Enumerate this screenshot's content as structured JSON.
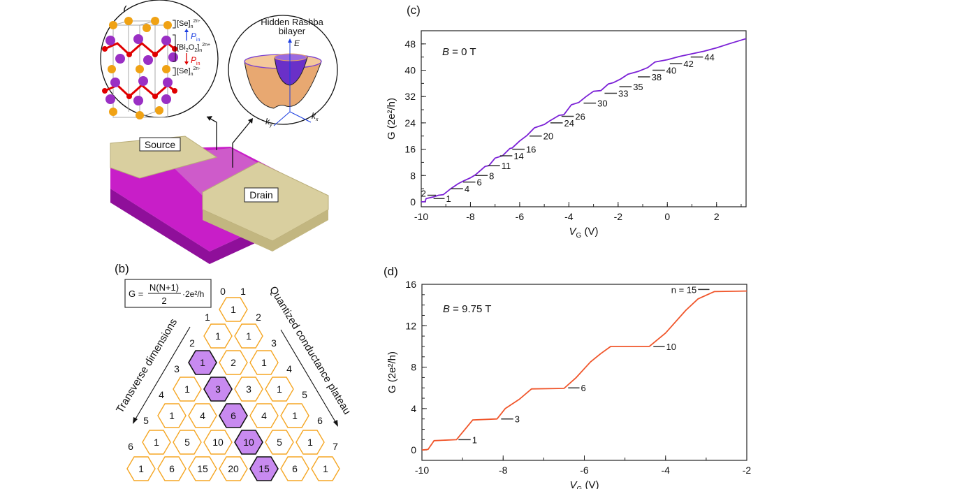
{
  "panel_labels": {
    "a": "(a)",
    "b": "(b)",
    "c": "(c)",
    "d": "(d)"
  },
  "panel_a": {
    "crystal": {
      "se_top": "[Se]",
      "se_top_sub": "n",
      "se_top_sup": "2n-",
      "bio": "[Bi",
      "bio_sub1": "2",
      "bio_mid": "O",
      "bio_sub2": "2",
      "bio_end": "]",
      "bio_sub3": "n",
      "bio_sup": "2n+",
      "se_bot": "[Se]",
      "se_bot_sub": "n",
      "se_bot_sup": "2n-",
      "p_up": "P",
      "p_up_sub": "in",
      "p_down": "P",
      "p_down_sub": "in"
    },
    "band": {
      "title_line1": "Hidden Rashba",
      "title_line2": "bilayer",
      "axis_e": "E",
      "axis_kx": "k",
      "axis_kx_sub": "x",
      "axis_ky": "k",
      "axis_ky_sub": "y"
    },
    "device": {
      "source_label": "Source",
      "drain_label": "Drain"
    },
    "colors": {
      "se": "#f0a214",
      "bi": "#9a2fc4",
      "o": "#e00000",
      "substrate": "#c81ec8",
      "contact": "#d9cf9f"
    }
  },
  "panel_b": {
    "formula": {
      "lhs": "G =",
      "numerator": "N(N+1)",
      "denominator": "2",
      "rhs": "·2e²/h"
    },
    "left_axis_label": "Transverse dimensions",
    "right_axis_label": "Quantized conductance plateau",
    "left_indices": [
      "0",
      "1",
      "2",
      "3",
      "4",
      "5",
      "6"
    ],
    "right_indices": [
      "1",
      "2",
      "3",
      "4",
      "5",
      "6",
      "7"
    ],
    "rows": [
      [
        "1"
      ],
      [
        "1",
        "1"
      ],
      [
        "1",
        "2",
        "1"
      ],
      [
        "1",
        "3",
        "3",
        "1"
      ],
      [
        "1",
        "4",
        "6",
        "4",
        "1"
      ],
      [
        "1",
        "5",
        "10",
        "10",
        "5",
        "1"
      ],
      [
        "1",
        "6",
        "15",
        "20",
        "15",
        "6",
        "1"
      ]
    ],
    "highlighted": [
      [
        2,
        0
      ],
      [
        3,
        1
      ],
      [
        4,
        2
      ],
      [
        5,
        3
      ],
      [
        6,
        4
      ]
    ],
    "colors": {
      "hex_border": "#f5a623",
      "highlight_fill": "#c88af0"
    }
  },
  "chart_data": [
    {
      "id": "c",
      "type": "line",
      "annotation_var": "B",
      "annotation_rest": " = 0 T",
      "xlabel_var": "V",
      "xlabel_sub": "G",
      "xlabel_unit": " (V)",
      "ylabel": "G (2e²/h)",
      "xlim": [
        -10,
        3.2
      ],
      "ylim": [
        -1.5,
        52
      ],
      "xticks": [
        -10,
        -8,
        -6,
        -4,
        -2,
        0,
        2
      ],
      "xminor": 1,
      "yticks": [
        0,
        8,
        16,
        24,
        32,
        40,
        48
      ],
      "yminor": 4,
      "color": "#7a1fd6",
      "x": [
        -10,
        -9.85,
        -9.8,
        -9.5,
        -9.3,
        -9.1,
        -8.8,
        -8.5,
        -8.3,
        -8.0,
        -7.8,
        -7.4,
        -7.25,
        -7.0,
        -6.7,
        -6.4,
        -6.3,
        -6.0,
        -5.7,
        -5.4,
        -5.0,
        -4.8,
        -4.4,
        -4.2,
        -3.9,
        -3.6,
        -3.3,
        -3.0,
        -2.7,
        -2.4,
        -2.2,
        -1.9,
        -1.6,
        -1.2,
        -0.8,
        -0.5,
        0,
        0.5,
        1.0,
        1.5,
        2.0,
        2.5,
        3.2
      ],
      "y": [
        0,
        0,
        1,
        1.5,
        2,
        2.2,
        4,
        5.5,
        6.3,
        7.3,
        8.2,
        10.8,
        11,
        13.3,
        14,
        16.2,
        16.4,
        18.5,
        20.2,
        22.5,
        23.5,
        24.5,
        26.3,
        26.5,
        29.5,
        30.2,
        32,
        33.6,
        33.8,
        35.8,
        36.2,
        37.3,
        38.8,
        39.6,
        40.8,
        42.5,
        43.2,
        44.2,
        45,
        45.8,
        46.8,
        48,
        49.6
      ],
      "plateaus": [
        {
          "label": "1",
          "y": 1,
          "x_start": -9.5,
          "x_end": -9.05,
          "side": "right"
        },
        {
          "label": "2",
          "y": 2,
          "x_start": -9.75,
          "x_end": -9.4,
          "side": "left"
        },
        {
          "label": "4",
          "y": 4,
          "x_start": -8.8,
          "x_end": -8.3,
          "side": "right"
        },
        {
          "label": "6",
          "y": 6,
          "x_start": -8.3,
          "x_end": -7.8,
          "side": "right"
        },
        {
          "label": "8",
          "y": 8,
          "x_start": -7.8,
          "x_end": -7.3,
          "side": "right"
        },
        {
          "label": "11",
          "y": 11,
          "x_start": -7.3,
          "x_end": -6.8,
          "side": "right"
        },
        {
          "label": "14",
          "y": 14,
          "x_start": -6.8,
          "x_end": -6.3,
          "side": "right"
        },
        {
          "label": "16",
          "y": 16,
          "x_start": -6.3,
          "x_end": -5.8,
          "side": "right"
        },
        {
          "label": "20",
          "y": 20,
          "x_start": -5.6,
          "x_end": -5.1,
          "side": "right"
        },
        {
          "label": "24",
          "y": 24,
          "x_start": -4.75,
          "x_end": -4.25,
          "side": "right"
        },
        {
          "label": "26",
          "y": 26,
          "x_start": -4.3,
          "x_end": -3.8,
          "side": "right"
        },
        {
          "label": "30",
          "y": 30,
          "x_start": -3.4,
          "x_end": -2.9,
          "side": "right"
        },
        {
          "label": "33",
          "y": 33,
          "x_start": -2.55,
          "x_end": -2.05,
          "side": "right"
        },
        {
          "label": "35",
          "y": 35,
          "x_start": -1.95,
          "x_end": -1.45,
          "side": "right"
        },
        {
          "label": "38",
          "y": 38,
          "x_start": -1.2,
          "x_end": -0.7,
          "side": "right"
        },
        {
          "label": "40",
          "y": 40,
          "x_start": -0.6,
          "x_end": -0.1,
          "side": "right"
        },
        {
          "label": "42",
          "y": 42,
          "x_start": 0.1,
          "x_end": 0.6,
          "side": "right"
        },
        {
          "label": "44",
          "y": 44,
          "x_start": 0.95,
          "x_end": 1.45,
          "side": "right"
        }
      ]
    },
    {
      "id": "d",
      "type": "line",
      "annotation_var": "B",
      "annotation_rest": " = 9.75 T",
      "xlabel_var": "V",
      "xlabel_sub": "G",
      "xlabel_unit": " (V)",
      "ylabel": "G (2e²/h)",
      "xlim": [
        -10,
        -2
      ],
      "ylim": [
        -1,
        16
      ],
      "xticks": [
        -10,
        -8,
        -6,
        -4,
        -2
      ],
      "xminor": 1,
      "yticks": [
        0,
        4,
        8,
        12,
        16
      ],
      "yminor": 1,
      "color": "#f0552a",
      "x": [
        -10,
        -9.85,
        -9.7,
        -9.15,
        -8.75,
        -8.15,
        -7.95,
        -7.6,
        -7.3,
        -6.5,
        -6.2,
        -5.85,
        -5.6,
        -5.35,
        -4.4,
        -4.0,
        -3.5,
        -3.2,
        -2.8,
        -2.0
      ],
      "y": [
        0,
        0.05,
        0.9,
        1,
        2.9,
        3,
        4,
        4.9,
        5.9,
        5.95,
        7,
        8.5,
        9.3,
        10,
        10,
        11.3,
        13.5,
        14.6,
        15.3,
        15.35
      ],
      "plateaus": [
        {
          "label": "1",
          "y": 1,
          "x_start": -9.1,
          "x_end": -8.8,
          "side": "right"
        },
        {
          "label": "3",
          "y": 3,
          "x_start": -8.05,
          "x_end": -7.75,
          "side": "right"
        },
        {
          "label": "6",
          "y": 6,
          "x_start": -6.4,
          "x_end": -6.12,
          "side": "right"
        },
        {
          "label": "10",
          "y": 10,
          "x_start": -4.3,
          "x_end": -4.02,
          "side": "right"
        },
        {
          "label": "n = 15",
          "y": 15.5,
          "x_start": -3.2,
          "x_end": -2.92,
          "side": "left"
        }
      ]
    }
  ]
}
